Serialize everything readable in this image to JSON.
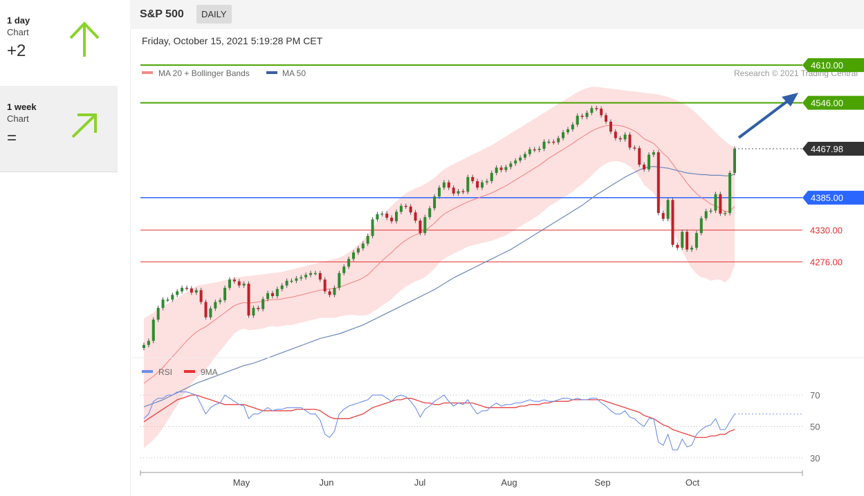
{
  "sidebar": {
    "items": [
      {
        "period": "1 day",
        "sub": "Chart",
        "value": "+2",
        "icon": "arrow-up-icon"
      },
      {
        "period": "1 week",
        "sub": "Chart",
        "value": "=",
        "icon": "arrow-up-right-icon"
      }
    ]
  },
  "header": {
    "symbol": "S&P 500",
    "interval": "DAILY",
    "timestamp": "Friday, October 15, 2021 5:19:28 PM CET",
    "legend_ma20": "MA 20 + Bollinger Bands",
    "legend_ma50": "MA 50",
    "copyright": "Research © 2021 Trading Central",
    "rsi_legend": "RSI",
    "rsi_ma_legend": "9MA"
  },
  "colors": {
    "up_candle": "#2e8b2e",
    "down_candle": "#c0202a",
    "resistance": "#4aa300",
    "support": "#2a66ff",
    "level_red": "#e03030",
    "bollinger_fill": "#fcd6d6",
    "ma20": "#f08080",
    "ma50": "#6a86b8",
    "rsi": "#6d8ee8",
    "rsi_ma": "#e84040",
    "projection_arrow": "#2f5fa8"
  },
  "chart_data": [
    {
      "type": "candlestick",
      "x_ticks": [
        "May",
        "Jun",
        "Jul",
        "Aug",
        "Sep",
        "Oct"
      ],
      "ylim": [
        4110,
        4650
      ],
      "levels": [
        {
          "value": 4610.0,
          "label": "4610.00",
          "kind": "resistance"
        },
        {
          "value": 4546.0,
          "label": "4546.00",
          "kind": "resistance"
        },
        {
          "value": 4467.98,
          "label": "4467.98",
          "kind": "last"
        },
        {
          "value": 4385.0,
          "label": "4385.00",
          "kind": "pivot"
        },
        {
          "value": 4330.0,
          "label": "4330.00",
          "kind": "support"
        },
        {
          "value": 4276.0,
          "label": "4276.00",
          "kind": "support"
        }
      ],
      "close": [
        4135,
        4142,
        4178,
        4198,
        4212,
        4212,
        4220,
        4226,
        4232,
        4231,
        4224,
        4228,
        4208,
        4182,
        4197,
        4208,
        4211,
        4232,
        4246,
        4243,
        4236,
        4239,
        4185,
        4198,
        4196,
        4213,
        4223,
        4218,
        4230,
        4236,
        4244,
        4244,
        4248,
        4250,
        4254,
        4257,
        4257,
        4246,
        4226,
        4220,
        4232,
        4257,
        4268,
        4281,
        4292,
        4299,
        4307,
        4320,
        4348,
        4357,
        4358,
        4351,
        4345,
        4361,
        4371,
        4370,
        4360,
        4346,
        4325,
        4352,
        4367,
        4387,
        4402,
        4411,
        4402,
        4392,
        4396,
        4395,
        4420,
        4413,
        4402,
        4411,
        4413,
        4427,
        4436,
        4432,
        4437,
        4443,
        4448,
        4453,
        4459,
        4467,
        4466,
        4468,
        4480,
        4480,
        4479,
        4486,
        4496,
        4501,
        4509,
        4524,
        4522,
        4529,
        4537,
        4536,
        4525,
        4514,
        4497,
        4486,
        4484,
        4492,
        4470,
        4469,
        4441,
        4433,
        4458,
        4462,
        4359,
        4349,
        4381,
        4305,
        4300,
        4327,
        4297,
        4300,
        4325,
        4350,
        4362,
        4363,
        4391,
        4358,
        4359,
        4427,
        4467.98
      ],
      "open": [
        4130,
        4135,
        4142,
        4178,
        4198,
        4212,
        4212,
        4220,
        4226,
        4232,
        4231,
        4224,
        4228,
        4208,
        4182,
        4197,
        4208,
        4211,
        4232,
        4246,
        4243,
        4236,
        4239,
        4185,
        4198,
        4196,
        4213,
        4223,
        4218,
        4230,
        4236,
        4244,
        4244,
        4248,
        4250,
        4254,
        4257,
        4257,
        4246,
        4226,
        4220,
        4232,
        4257,
        4268,
        4281,
        4292,
        4299,
        4307,
        4320,
        4348,
        4357,
        4358,
        4351,
        4345,
        4361,
        4371,
        4370,
        4360,
        4346,
        4325,
        4352,
        4367,
        4387,
        4402,
        4411,
        4402,
        4392,
        4396,
        4395,
        4420,
        4413,
        4402,
        4411,
        4413,
        4427,
        4436,
        4432,
        4437,
        4443,
        4448,
        4453,
        4459,
        4467,
        4466,
        4468,
        4480,
        4480,
        4479,
        4486,
        4496,
        4501,
        4509,
        4524,
        4522,
        4529,
        4537,
        4536,
        4525,
        4514,
        4497,
        4486,
        4484,
        4492,
        4470,
        4469,
        4441,
        4433,
        4458,
        4462,
        4359,
        4349,
        4381,
        4305,
        4300,
        4327,
        4297,
        4300,
        4325,
        4350,
        4362,
        4363,
        4391,
        4358,
        4359,
        4427
      ],
      "ma20": [
        4070,
        4076,
        4082,
        4089,
        4097,
        4106,
        4115,
        4124,
        4133,
        4142,
        4150,
        4157,
        4162,
        4166,
        4172,
        4178,
        4184,
        4190,
        4196,
        4202,
        4205,
        4207,
        4206,
        4207,
        4208,
        4209,
        4211,
        4212,
        4212,
        4213,
        4215,
        4216,
        4218,
        4220,
        4222,
        4224,
        4226,
        4228,
        4229,
        4230,
        4231,
        4233,
        4236,
        4239,
        4242,
        4245,
        4249,
        4254,
        4262,
        4270,
        4278,
        4285,
        4292,
        4300,
        4307,
        4313,
        4318,
        4322,
        4325,
        4329,
        4335,
        4342,
        4350,
        4357,
        4362,
        4366,
        4370,
        4374,
        4378,
        4381,
        4384,
        4387,
        4390,
        4393,
        4397,
        4401,
        4405,
        4410,
        4415,
        4420,
        4425,
        4430,
        4435,
        4440,
        4446,
        4452,
        4457,
        4462,
        4467,
        4472,
        4477,
        4483,
        4488,
        4493,
        4498,
        4502,
        4505,
        4507,
        4508,
        4508,
        4507,
        4505,
        4502,
        4498,
        4492,
        4485,
        4481,
        4477,
        4469,
        4460,
        4453,
        4442,
        4431,
        4421,
        4410,
        4400,
        4392,
        4385,
        4380,
        4374,
        4371,
        4367,
        4361,
        4362,
        4370
      ],
      "ma50": [
        4030,
        4033,
        4036,
        4039,
        4042,
        4046,
        4050,
        4054,
        4058,
        4062,
        4066,
        4070,
        4073,
        4076,
        4079,
        4082,
        4085,
        4088,
        4091,
        4094,
        4097,
        4100,
        4102,
        4104,
        4107,
        4110,
        4113,
        4116,
        4119,
        4122,
        4125,
        4128,
        4131,
        4134,
        4137,
        4140,
        4143,
        4146,
        4148,
        4150,
        4152,
        4154,
        4157,
        4160,
        4163,
        4166,
        4169,
        4173,
        4177,
        4181,
        4185,
        4189,
        4193,
        4197,
        4201,
        4205,
        4209,
        4213,
        4217,
        4221,
        4225,
        4229,
        4234,
        4239,
        4244,
        4249,
        4253,
        4257,
        4261,
        4265,
        4269,
        4273,
        4277,
        4281,
        4285,
        4289,
        4293,
        4297,
        4302,
        4307,
        4312,
        4317,
        4322,
        4327,
        4332,
        4337,
        4342,
        4347,
        4352,
        4357,
        4362,
        4367,
        4372,
        4378,
        4384,
        4390,
        4395,
        4400,
        4405,
        4410,
        4415,
        4420,
        4424,
        4428,
        4432,
        4435,
        4437,
        4438,
        4437,
        4436,
        4435,
        4433,
        4431,
        4429,
        4427,
        4426,
        4425,
        4424,
        4424,
        4423,
        4423,
        4423,
        4422,
        4422,
        4425
      ],
      "bb_upper": [
        4180,
        4185,
        4190,
        4195,
        4200,
        4205,
        4210,
        4215,
        4220,
        4225,
        4230,
        4235,
        4237,
        4238,
        4240,
        4241,
        4243,
        4245,
        4247,
        4249,
        4250,
        4251,
        4252,
        4253,
        4254,
        4255,
        4256,
        4257,
        4258,
        4259,
        4261,
        4263,
        4265,
        4267,
        4269,
        4271,
        4273,
        4275,
        4277,
        4279,
        4281,
        4283,
        4287,
        4292,
        4298,
        4305,
        4313,
        4322,
        4333,
        4344,
        4354,
        4363,
        4371,
        4379,
        4386,
        4392,
        4397,
        4401,
        4404,
        4408,
        4413,
        4419,
        4426,
        4433,
        4438,
        4442,
        4446,
        4450,
        4454,
        4458,
        4462,
        4466,
        4470,
        4474,
        4479,
        4484,
        4489,
        4494,
        4499,
        4504,
        4509,
        4514,
        4519,
        4524,
        4529,
        4534,
        4539,
        4544,
        4549,
        4554,
        4559,
        4564,
        4568,
        4571,
        4573,
        4573,
        4572,
        4571,
        4570,
        4569,
        4568,
        4567,
        4566,
        4565,
        4564,
        4563,
        4562,
        4561,
        4560,
        4558,
        4556,
        4553,
        4550,
        4546,
        4541,
        4535,
        4528,
        4520,
        4512,
        4504,
        4496,
        4488,
        4481,
        4475,
        4470
      ],
      "bb_lower": [
        3960,
        3967,
        3974,
        3983,
        3994,
        4007,
        4020,
        4033,
        4046,
        4059,
        4070,
        4079,
        4087,
        4094,
        4104,
        4115,
        4125,
        4135,
        4145,
        4155,
        4160,
        4163,
        4160,
        4161,
        4162,
        4163,
        4166,
        4167,
        4166,
        4167,
        4169,
        4169,
        4171,
        4173,
        4175,
        4177,
        4179,
        4181,
        4181,
        4181,
        4181,
        4183,
        4185,
        4186,
        4186,
        4185,
        4185,
        4186,
        4191,
        4196,
        4202,
        4207,
        4213,
        4221,
        4228,
        4234,
        4239,
        4243,
        4246,
        4250,
        4257,
        4265,
        4274,
        4281,
        4286,
        4290,
        4294,
        4298,
        4302,
        4304,
        4306,
        4308,
        4310,
        4312,
        4315,
        4318,
        4321,
        4326,
        4331,
        4336,
        4341,
        4346,
        4351,
        4356,
        4363,
        4370,
        4375,
        4380,
        4385,
        4390,
        4395,
        4402,
        4408,
        4415,
        4423,
        4431,
        4438,
        4443,
        4446,
        4447,
        4446,
        4443,
        4438,
        4431,
        4420,
        4407,
        4400,
        4393,
        4378,
        4362,
        4350,
        4331,
        4312,
        4296,
        4279,
        4265,
        4256,
        4250,
        4248,
        4244,
        4246,
        4246,
        4241,
        4249,
        4270
      ]
    },
    {
      "type": "line",
      "title": "RSI",
      "ylim": [
        22,
        78
      ],
      "y_ticks": [
        70,
        50,
        30
      ],
      "series": [
        {
          "name": "RSI",
          "values": [
            55,
            58,
            66,
            68,
            68,
            70,
            70,
            72,
            72,
            72,
            71,
            70,
            64,
            58,
            62,
            64,
            65,
            70,
            68,
            66,
            64,
            63,
            55,
            58,
            58,
            60,
            62,
            60,
            61,
            61,
            62,
            62,
            62,
            62,
            60,
            58,
            58,
            54,
            45,
            43,
            47,
            58,
            61,
            63,
            64,
            65,
            66,
            67,
            70,
            70,
            70,
            68,
            66,
            69,
            70,
            69,
            66,
            62,
            56,
            61,
            63,
            66,
            68,
            70,
            66,
            63,
            65,
            64,
            67,
            62,
            58,
            60,
            60,
            63,
            65,
            63,
            64,
            64,
            65,
            65,
            66,
            67,
            66,
            66,
            67,
            66,
            66,
            67,
            68,
            68,
            67,
            68,
            67,
            67,
            68,
            68,
            65,
            63,
            60,
            58,
            58,
            60,
            56,
            55,
            52,
            50,
            55,
            55,
            40,
            38,
            45,
            35,
            35,
            42,
            37,
            38,
            45,
            48,
            50,
            51,
            55,
            48,
            48,
            53,
            58
          ]
        },
        {
          "name": "9MA",
          "values": [
            53,
            55,
            57,
            59,
            61,
            63,
            65,
            67,
            68,
            69,
            70,
            70,
            69,
            68,
            67,
            66,
            65,
            64,
            64,
            64,
            64,
            64,
            63,
            62,
            61,
            60,
            60,
            60,
            60,
            60,
            60,
            60,
            61,
            61,
            61,
            61,
            61,
            60,
            58,
            56,
            55,
            55,
            55,
            55,
            56,
            57,
            58,
            60,
            62,
            63,
            64,
            65,
            66,
            67,
            67,
            68,
            68,
            67,
            66,
            65,
            65,
            64,
            64,
            65,
            65,
            65,
            65,
            65,
            65,
            65,
            64,
            63,
            62,
            62,
            62,
            62,
            62,
            62,
            62,
            63,
            63,
            64,
            64,
            64,
            65,
            65,
            66,
            66,
            66,
            66,
            67,
            67,
            67,
            67,
            67,
            67,
            67,
            66,
            65,
            64,
            63,
            62,
            61,
            60,
            59,
            57,
            56,
            55,
            53,
            51,
            50,
            48,
            47,
            46,
            45,
            44,
            43,
            43,
            43,
            44,
            44,
            45,
            45,
            47,
            48
          ]
        }
      ]
    }
  ]
}
